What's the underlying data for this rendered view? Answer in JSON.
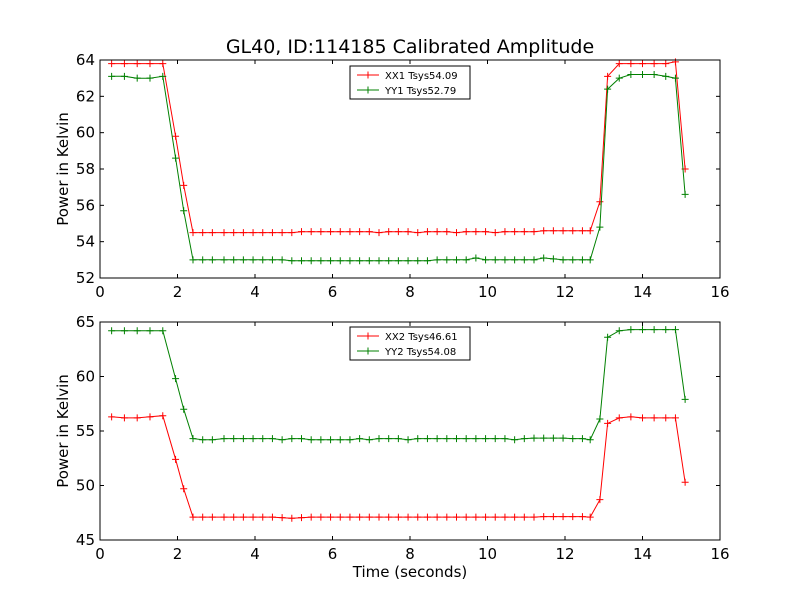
{
  "chart_data": [
    {
      "type": "line",
      "title": "GL40, ID:114185 Calibrated Amplitude",
      "xlabel": "",
      "ylabel": "Power in Kelvin",
      "xlim": [
        0,
        16
      ],
      "ylim": [
        52,
        64
      ],
      "xticks": [
        0,
        2,
        4,
        6,
        8,
        10,
        12,
        14,
        16
      ],
      "yticks": [
        52,
        54,
        56,
        58,
        60,
        62,
        64
      ],
      "legend_position": "top-center",
      "series": [
        {
          "name": "XX1 Tsys54.09",
          "color": "#ff0000",
          "marker": "plus",
          "x": [
            0.3,
            0.63,
            0.96,
            1.29,
            1.62,
            1.95,
            2.16,
            2.4,
            2.65,
            2.9,
            3.2,
            3.45,
            3.7,
            3.95,
            4.2,
            4.45,
            4.7,
            4.95,
            5.2,
            5.45,
            5.7,
            5.95,
            6.2,
            6.45,
            6.7,
            6.95,
            7.2,
            7.45,
            7.7,
            7.95,
            8.2,
            8.45,
            8.7,
            8.95,
            9.2,
            9.45,
            9.7,
            9.95,
            10.2,
            10.45,
            10.7,
            10.95,
            11.2,
            11.45,
            11.7,
            11.95,
            12.2,
            12.45,
            12.65,
            12.9,
            13.1,
            13.4,
            13.7,
            14.0,
            14.3,
            14.6,
            14.85,
            15.1
          ],
          "y": [
            63.8,
            63.8,
            63.8,
            63.8,
            63.8,
            59.8,
            57.1,
            54.5,
            54.5,
            54.5,
            54.5,
            54.5,
            54.5,
            54.5,
            54.5,
            54.5,
            54.5,
            54.5,
            54.55,
            54.55,
            54.55,
            54.55,
            54.55,
            54.55,
            54.55,
            54.55,
            54.5,
            54.55,
            54.55,
            54.55,
            54.5,
            54.55,
            54.55,
            54.55,
            54.5,
            54.55,
            54.55,
            54.55,
            54.5,
            54.55,
            54.55,
            54.55,
            54.55,
            54.6,
            54.6,
            54.6,
            54.6,
            54.6,
            54.6,
            56.2,
            63.1,
            63.8,
            63.8,
            63.8,
            63.8,
            63.8,
            63.9,
            58.0
          ]
        },
        {
          "name": "YY1 Tsys52.79",
          "color": "#008000",
          "marker": "plus",
          "x": [
            0.3,
            0.63,
            0.96,
            1.29,
            1.62,
            1.95,
            2.16,
            2.4,
            2.65,
            2.9,
            3.2,
            3.45,
            3.7,
            3.95,
            4.2,
            4.45,
            4.7,
            4.95,
            5.2,
            5.45,
            5.7,
            5.95,
            6.2,
            6.45,
            6.7,
            6.95,
            7.2,
            7.45,
            7.7,
            7.95,
            8.2,
            8.45,
            8.7,
            8.95,
            9.2,
            9.45,
            9.7,
            9.95,
            10.2,
            10.45,
            10.7,
            10.95,
            11.2,
            11.45,
            11.7,
            11.95,
            12.2,
            12.45,
            12.65,
            12.9,
            13.1,
            13.4,
            13.7,
            14.0,
            14.3,
            14.6,
            14.85,
            15.1
          ],
          "y": [
            63.1,
            63.1,
            63.0,
            63.0,
            63.1,
            58.6,
            55.7,
            53.0,
            53.0,
            53.0,
            53.0,
            53.0,
            53.0,
            53.0,
            53.0,
            53.0,
            53.0,
            52.95,
            52.95,
            52.95,
            52.95,
            52.95,
            52.95,
            52.95,
            52.95,
            52.95,
            52.95,
            52.95,
            52.95,
            52.95,
            52.95,
            52.95,
            53.0,
            53.0,
            53.0,
            53.0,
            53.1,
            53.0,
            53.0,
            53.0,
            53.0,
            53.0,
            53.0,
            53.1,
            53.05,
            53.0,
            53.0,
            53.0,
            53.0,
            54.8,
            62.4,
            63.0,
            63.2,
            63.2,
            63.2,
            63.1,
            63.0,
            56.6
          ]
        }
      ]
    },
    {
      "type": "line",
      "title": "",
      "xlabel": "Time (seconds)",
      "ylabel": "Power in Kelvin",
      "xlim": [
        0,
        16
      ],
      "ylim": [
        45,
        65
      ],
      "xticks": [
        0,
        2,
        4,
        6,
        8,
        10,
        12,
        14,
        16
      ],
      "yticks": [
        45,
        50,
        55,
        60,
        65
      ],
      "legend_position": "top-center",
      "series": [
        {
          "name": "XX2 Tsys46.61",
          "color": "#ff0000",
          "marker": "plus",
          "x": [
            0.3,
            0.63,
            0.96,
            1.29,
            1.62,
            1.95,
            2.16,
            2.4,
            2.65,
            2.9,
            3.2,
            3.45,
            3.7,
            3.95,
            4.2,
            4.45,
            4.7,
            4.95,
            5.2,
            5.45,
            5.7,
            5.95,
            6.2,
            6.45,
            6.7,
            6.95,
            7.2,
            7.45,
            7.7,
            7.95,
            8.2,
            8.45,
            8.7,
            8.95,
            9.2,
            9.45,
            9.7,
            9.95,
            10.2,
            10.45,
            10.7,
            10.95,
            11.2,
            11.45,
            11.7,
            11.95,
            12.2,
            12.45,
            12.65,
            12.9,
            13.1,
            13.4,
            13.7,
            14.0,
            14.3,
            14.6,
            14.85,
            15.1
          ],
          "y": [
            56.3,
            56.2,
            56.2,
            56.3,
            56.4,
            52.4,
            49.7,
            47.1,
            47.1,
            47.1,
            47.1,
            47.1,
            47.1,
            47.1,
            47.1,
            47.1,
            47.05,
            47.0,
            47.05,
            47.1,
            47.1,
            47.1,
            47.1,
            47.1,
            47.1,
            47.1,
            47.1,
            47.1,
            47.1,
            47.1,
            47.1,
            47.1,
            47.1,
            47.1,
            47.1,
            47.1,
            47.1,
            47.1,
            47.1,
            47.1,
            47.1,
            47.1,
            47.1,
            47.15,
            47.15,
            47.15,
            47.15,
            47.15,
            47.1,
            48.7,
            55.7,
            56.2,
            56.3,
            56.2,
            56.2,
            56.2,
            56.2,
            50.3
          ]
        },
        {
          "name": "YY2 Tsys54.08",
          "color": "#008000",
          "marker": "plus",
          "x": [
            0.3,
            0.63,
            0.96,
            1.29,
            1.62,
            1.95,
            2.16,
            2.4,
            2.65,
            2.9,
            3.2,
            3.45,
            3.7,
            3.95,
            4.2,
            4.45,
            4.7,
            4.95,
            5.2,
            5.45,
            5.7,
            5.95,
            6.2,
            6.45,
            6.7,
            6.95,
            7.2,
            7.45,
            7.7,
            7.95,
            8.2,
            8.45,
            8.7,
            8.95,
            9.2,
            9.45,
            9.7,
            9.95,
            10.2,
            10.45,
            10.7,
            10.95,
            11.2,
            11.45,
            11.7,
            11.95,
            12.2,
            12.45,
            12.65,
            12.9,
            13.1,
            13.4,
            13.7,
            14.0,
            14.3,
            14.6,
            14.85,
            15.1
          ],
          "y": [
            64.2,
            64.2,
            64.2,
            64.2,
            64.2,
            59.8,
            57.0,
            54.3,
            54.2,
            54.2,
            54.3,
            54.3,
            54.3,
            54.3,
            54.3,
            54.3,
            54.2,
            54.3,
            54.3,
            54.2,
            54.2,
            54.2,
            54.2,
            54.2,
            54.3,
            54.2,
            54.3,
            54.3,
            54.3,
            54.2,
            54.3,
            54.3,
            54.3,
            54.3,
            54.3,
            54.3,
            54.3,
            54.3,
            54.3,
            54.3,
            54.2,
            54.3,
            54.35,
            54.35,
            54.35,
            54.35,
            54.3,
            54.3,
            54.2,
            56.1,
            63.6,
            64.2,
            64.3,
            64.3,
            64.3,
            64.3,
            64.3,
            57.9
          ]
        }
      ]
    }
  ]
}
